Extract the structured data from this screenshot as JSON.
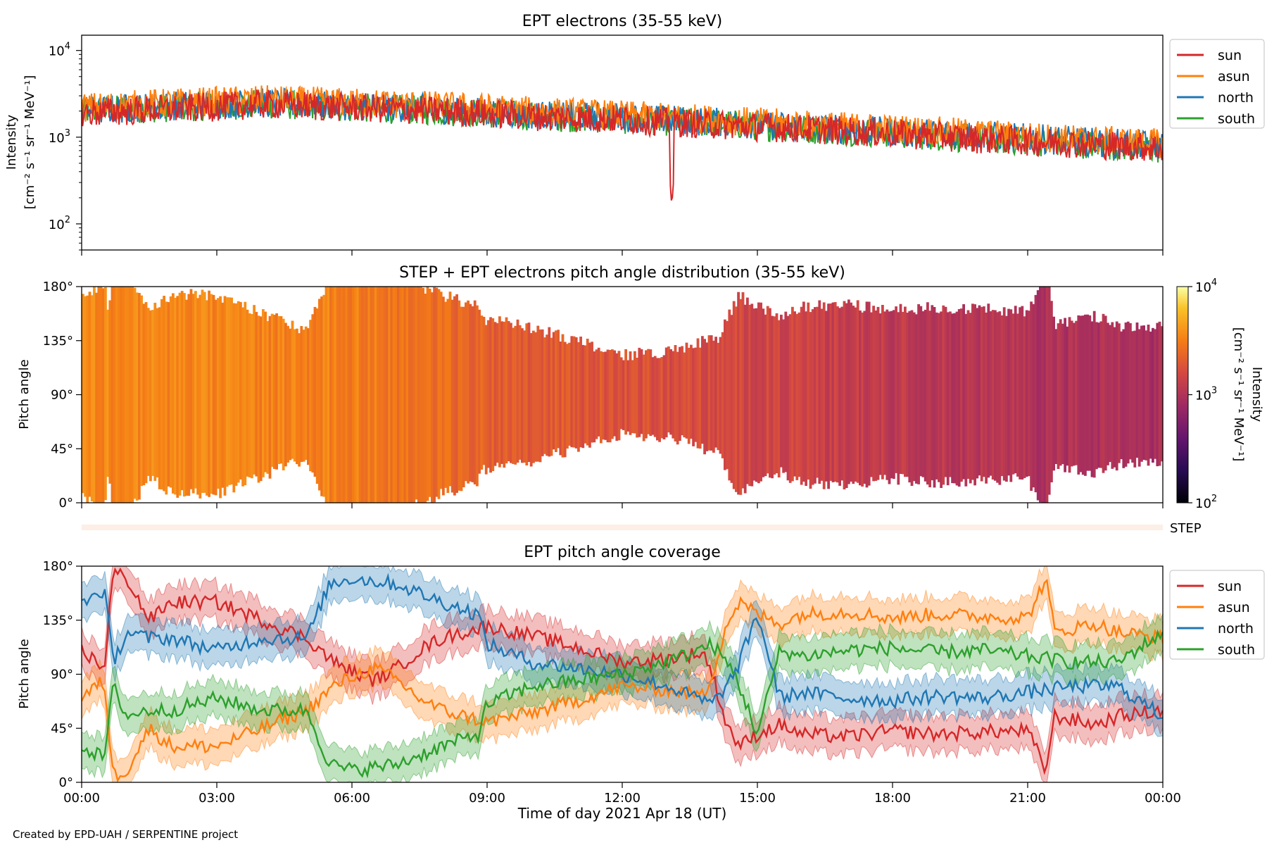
{
  "chart_data": [
    {
      "type": "line",
      "title": "EPT electrons (35-55 keV)",
      "ylabel_line1": "Intensity",
      "ylabel_line2": "[cm⁻² s⁻¹ sr⁻¹ MeV⁻¹]",
      "yscale": "log",
      "ylim": [
        50,
        15000
      ],
      "yticks": [
        {
          "label": "10",
          "sup": "2",
          "v": 100
        },
        {
          "label": "10",
          "sup": "3",
          "v": 1000
        },
        {
          "label": "10",
          "sup": "4",
          "v": 10000
        }
      ],
      "xlim_hours": [
        0,
        24
      ],
      "legend_position": "outside-right",
      "series": [
        {
          "name": "sun",
          "color": "#d62728",
          "base": [
            [
              0,
              1900
            ],
            [
              2,
              2100
            ],
            [
              4,
              2400
            ],
            [
              6,
              2200
            ],
            [
              8,
              2000
            ],
            [
              10,
              1750
            ],
            [
              12,
              1600
            ],
            [
              14,
              1400
            ],
            [
              16,
              1250
            ],
            [
              18,
              1100
            ],
            [
              20,
              950
            ],
            [
              22,
              850
            ],
            [
              24,
              750
            ]
          ]
        },
        {
          "name": "asun",
          "color": "#ff7f0e",
          "base": [
            [
              0,
              2200
            ],
            [
              2,
              2500
            ],
            [
              4,
              2700
            ],
            [
              6,
              2500
            ],
            [
              8,
              2300
            ],
            [
              10,
              2000
            ],
            [
              12,
              1800
            ],
            [
              14,
              1600
            ],
            [
              16,
              1400
            ],
            [
              18,
              1250
            ],
            [
              20,
              1100
            ],
            [
              22,
              950
            ],
            [
              24,
              850
            ]
          ]
        },
        {
          "name": "north",
          "color": "#1f77b4",
          "base": [
            [
              0,
              2000
            ],
            [
              2,
              2300
            ],
            [
              4,
              2500
            ],
            [
              6,
              2300
            ],
            [
              8,
              2100
            ],
            [
              10,
              1800
            ],
            [
              12,
              1700
            ],
            [
              14,
              1500
            ],
            [
              16,
              1300
            ],
            [
              18,
              1150
            ],
            [
              20,
              1050
            ],
            [
              22,
              900
            ],
            [
              24,
              800
            ]
          ]
        },
        {
          "name": "south",
          "color": "#2ca02c",
          "base": [
            [
              0,
              2000
            ],
            [
              2,
              2200
            ],
            [
              4,
              2400
            ],
            [
              6,
              2200
            ],
            [
              8,
              2000
            ],
            [
              10,
              1750
            ],
            [
              12,
              1600
            ],
            [
              14,
              1450
            ],
            [
              16,
              1250
            ],
            [
              18,
              1100
            ],
            [
              20,
              950
            ],
            [
              22,
              850
            ],
            [
              24,
              720
            ]
          ]
        }
      ],
      "annotations": [
        {
          "series": "sun",
          "hour": 13.1,
          "value": 150,
          "note": "dip"
        }
      ]
    },
    {
      "type": "heatmap",
      "title": "STEP + EPT electrons pitch angle distribution (35-55 keV)",
      "ylabel": "Pitch angle",
      "ylim": [
        0,
        180
      ],
      "yticks": [
        "0°",
        "45°",
        "90°",
        "135°",
        "180°"
      ],
      "colorbar_label": "Intensity",
      "colorbar_units": "[cm⁻² s⁻¹ sr⁻¹ MeV⁻¹]",
      "colorbar_range": [
        100,
        10000
      ],
      "colorbar_ticks": [
        {
          "label": "10",
          "sup": "2"
        },
        {
          "label": "10",
          "sup": "3"
        },
        {
          "label": "10",
          "sup": "4"
        }
      ],
      "colormap": "inferno",
      "description_values_hours": [
        [
          0,
          3500
        ],
        [
          6,
          3200
        ],
        [
          9,
          2200
        ],
        [
          12,
          1800
        ],
        [
          15,
          1500
        ],
        [
          18,
          1200
        ],
        [
          21,
          1000
        ],
        [
          24,
          900
        ]
      ]
    },
    {
      "type": "strip",
      "label": "STEP",
      "color": "#fdeee6"
    },
    {
      "type": "line",
      "title": "EPT pitch angle coverage",
      "ylabel": "Pitch angle",
      "ylim": [
        0,
        180
      ],
      "yticks": [
        "0°",
        "45°",
        "90°",
        "135°",
        "180°"
      ],
      "xlabel": "Time of day 2021 Apr 18 (UT)",
      "xticks": [
        "00:00",
        "03:00",
        "06:00",
        "09:00",
        "12:00",
        "15:00",
        "18:00",
        "21:00",
        "00:00"
      ],
      "legend_position": "outside-right",
      "band_halfwidth_deg": 15,
      "series": [
        {
          "name": "sun",
          "color": "#d62728",
          "points": [
            [
              0,
              110
            ],
            [
              0.5,
              95
            ],
            [
              0.7,
              175
            ],
            [
              1,
              170
            ],
            [
              1.5,
              135
            ],
            [
              2,
              150
            ],
            [
              3,
              150
            ],
            [
              4,
              135
            ],
            [
              5,
              120
            ],
            [
              5.6,
              100
            ],
            [
              6,
              92
            ],
            [
              6.5,
              85
            ],
            [
              7,
              95
            ],
            [
              7.5,
              110
            ],
            [
              8,
              120
            ],
            [
              9,
              130
            ],
            [
              10,
              122
            ],
            [
              11,
              112
            ],
            [
              12,
              100
            ],
            [
              13,
              103
            ],
            [
              13.8,
              108
            ],
            [
              14,
              90
            ],
            [
              14.3,
              50
            ],
            [
              14.6,
              30
            ],
            [
              15,
              40
            ],
            [
              15.5,
              48
            ],
            [
              16,
              40
            ],
            [
              17,
              38
            ],
            [
              18,
              43
            ],
            [
              19,
              40
            ],
            [
              20,
              42
            ],
            [
              21,
              43
            ],
            [
              21.4,
              10
            ],
            [
              21.6,
              55
            ],
            [
              22.5,
              48
            ],
            [
              23,
              55
            ],
            [
              24,
              60
            ]
          ]
        },
        {
          "name": "asun",
          "color": "#ff7f0e",
          "points": [
            [
              0,
              70
            ],
            [
              0.5,
              85
            ],
            [
              0.7,
              5
            ],
            [
              1,
              10
            ],
            [
              1.5,
              45
            ],
            [
              2,
              30
            ],
            [
              3,
              30
            ],
            [
              4,
              45
            ],
            [
              5,
              60
            ],
            [
              5.6,
              80
            ],
            [
              6,
              88
            ],
            [
              6.5,
              95
            ],
            [
              7,
              85
            ],
            [
              7.5,
              70
            ],
            [
              8,
              60
            ],
            [
              9,
              50
            ],
            [
              10,
              58
            ],
            [
              11,
              68
            ],
            [
              12,
              80
            ],
            [
              13,
              77
            ],
            [
              13.8,
              72
            ],
            [
              14,
              90
            ],
            [
              14.3,
              130
            ],
            [
              14.6,
              150
            ],
            [
              15,
              140
            ],
            [
              15.5,
              132
            ],
            [
              16,
              140
            ],
            [
              17,
              142
            ],
            [
              18,
              137
            ],
            [
              19,
              140
            ],
            [
              20,
              138
            ],
            [
              21,
              137
            ],
            [
              21.4,
              170
            ],
            [
              21.6,
              125
            ],
            [
              22.5,
              132
            ],
            [
              23,
              125
            ],
            [
              24,
              120
            ]
          ]
        },
        {
          "name": "north",
          "color": "#1f77b4",
          "points": [
            [
              0,
              150
            ],
            [
              0.5,
              160
            ],
            [
              0.7,
              100
            ],
            [
              1,
              125
            ],
            [
              1.5,
              120
            ],
            [
              2,
              120
            ],
            [
              3,
              110
            ],
            [
              4,
              120
            ],
            [
              5,
              120
            ],
            [
              5.5,
              165
            ],
            [
              6,
              170
            ],
            [
              7,
              165
            ],
            [
              8,
              150
            ],
            [
              8.8,
              140
            ],
            [
              9,
              115
            ],
            [
              10,
              100
            ],
            [
              11,
              95
            ],
            [
              12,
              90
            ],
            [
              13,
              80
            ],
            [
              14,
              65
            ],
            [
              14.5,
              90
            ],
            [
              15,
              140
            ],
            [
              15.5,
              70
            ],
            [
              16,
              75
            ],
            [
              17,
              70
            ],
            [
              18,
              68
            ],
            [
              19,
              72
            ],
            [
              20,
              70
            ],
            [
              21,
              75
            ],
            [
              22,
              80
            ],
            [
              23,
              80
            ],
            [
              24,
              55
            ]
          ]
        },
        {
          "name": "south",
          "color": "#2ca02c",
          "points": [
            [
              0,
              30
            ],
            [
              0.5,
              20
            ],
            [
              0.7,
              80
            ],
            [
              1,
              55
            ],
            [
              1.5,
              60
            ],
            [
              2,
              60
            ],
            [
              3,
              70
            ],
            [
              4,
              60
            ],
            [
              5,
              60
            ],
            [
              5.5,
              15
            ],
            [
              6,
              10
            ],
            [
              7,
              15
            ],
            [
              8,
              30
            ],
            [
              8.8,
              40
            ],
            [
              9,
              65
            ],
            [
              10,
              80
            ],
            [
              11,
              85
            ],
            [
              12,
              90
            ],
            [
              13,
              100
            ],
            [
              14,
              115
            ],
            [
              14.5,
              90
            ],
            [
              15,
              40
            ],
            [
              15.5,
              110
            ],
            [
              16,
              105
            ],
            [
              17,
              110
            ],
            [
              18,
              112
            ],
            [
              19,
              108
            ],
            [
              20,
              110
            ],
            [
              21,
              105
            ],
            [
              22,
              100
            ],
            [
              23,
              100
            ],
            [
              24,
              125
            ]
          ]
        }
      ]
    }
  ],
  "footer": "Created by EPD-UAH / SERPENTINE project"
}
